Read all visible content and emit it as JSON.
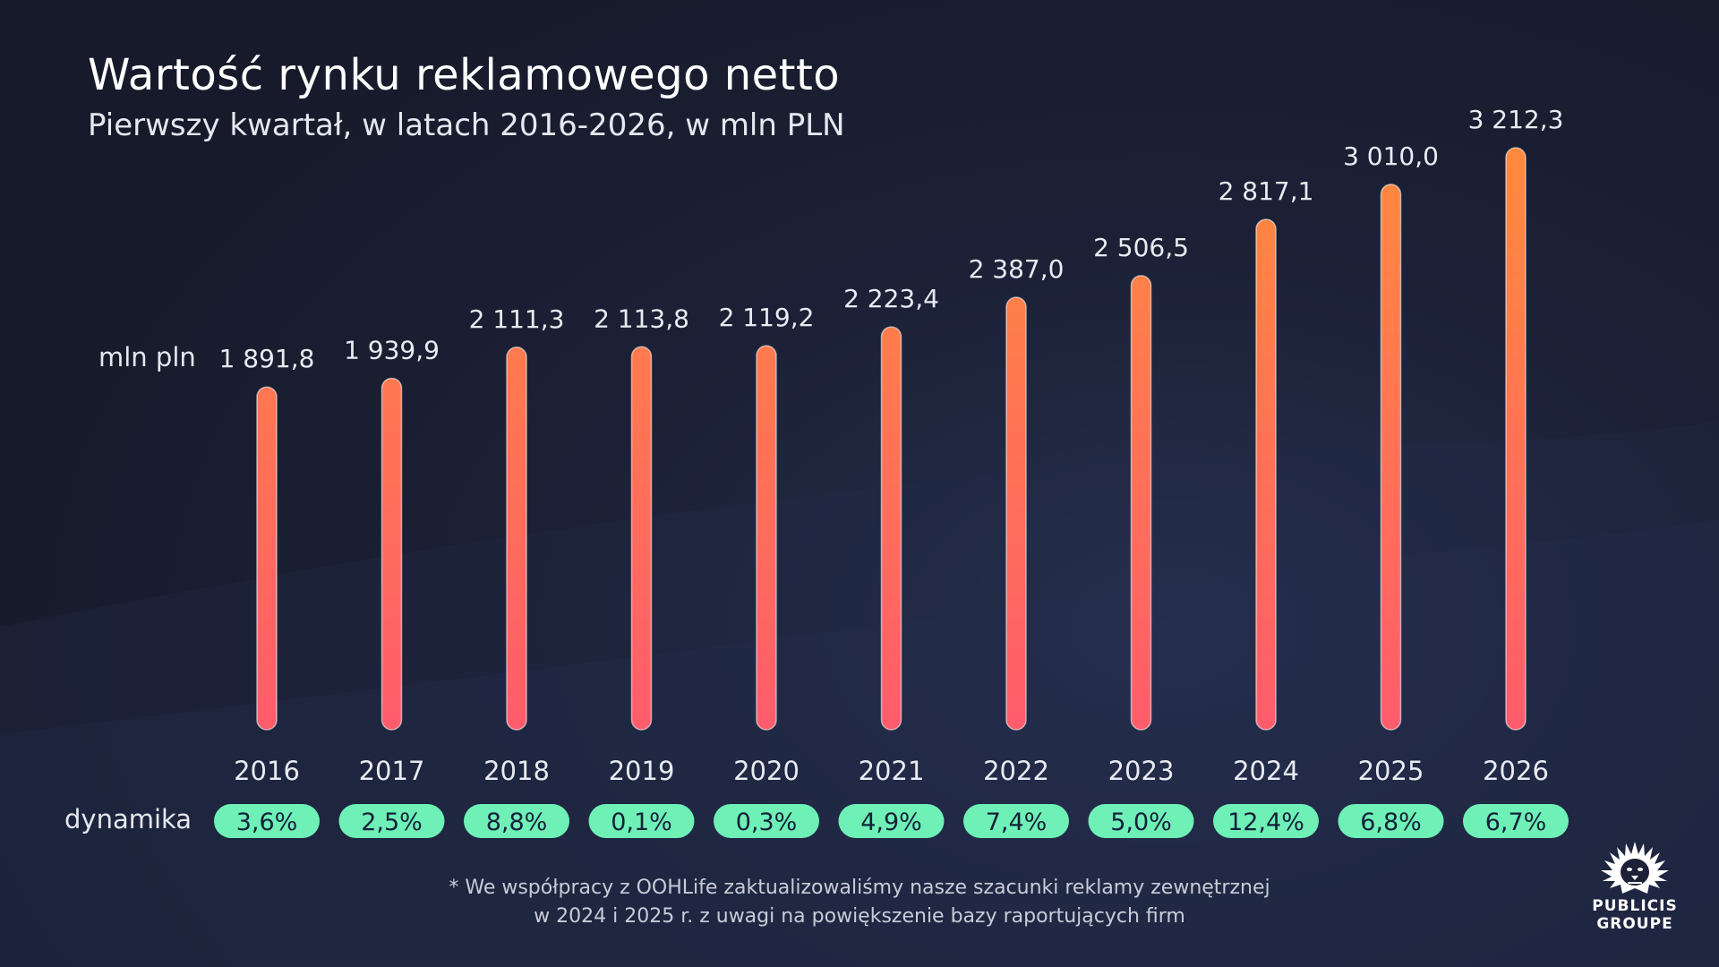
{
  "header": {
    "title": "Wartość rynku reklamowego netto",
    "subtitle": "Pierwszy kwartał, w latach 2016-2026, w mln PLN"
  },
  "labels": {
    "unit": "mln pln",
    "dynamics": "dynamika"
  },
  "colors": {
    "bar_top": "#ff8a3d",
    "bar_bottom": "#ff5c6c",
    "pill": "#6ef0b6",
    "background": "#1c2137"
  },
  "chart_data": {
    "type": "bar",
    "title": "Wartość rynku reklamowego netto",
    "subtitle": "Pierwszy kwartał, w latach 2016-2026, w mln PLN",
    "ylabel": "mln pln",
    "categories": [
      "2016",
      "2017",
      "2018",
      "2019",
      "2020",
      "2021",
      "2022",
      "2023",
      "2024",
      "2025",
      "2026"
    ],
    "values": [
      1891.8,
      1939.9,
      2111.3,
      2113.8,
      2119.2,
      2223.4,
      2387.0,
      2506.5,
      2817.1,
      3010.0,
      3212.3
    ],
    "value_labels": [
      "1 891,8",
      "1 939,9",
      "2 111,3",
      "2 113,8",
      "2 119,2",
      "2 223,4",
      "2 387,0",
      "2 506,5",
      "2 817,1",
      "3 010,0",
      "3 212,3"
    ],
    "dynamics": [
      "3,6%",
      "2,5%",
      "8,8%",
      "0,1%",
      "0,3%",
      "4,9%",
      "7,4%",
      "5,0%",
      "12,4%",
      "6,8%",
      "6,7%"
    ],
    "ylim": [
      0,
      3300
    ],
    "grid": false,
    "legend": "none"
  },
  "footnote": {
    "line1": "* We współpracy z OOHLife zaktualizowaliśmy nasze szacunki reklamy zewnętrznej",
    "line2": "w 2024 i 2025 r. z uwagi na powiększenie bazy raportujących firm"
  },
  "logo": {
    "line1": "PUBLICIS",
    "line2": "GROUPE",
    "icon": "lion-head-icon"
  }
}
